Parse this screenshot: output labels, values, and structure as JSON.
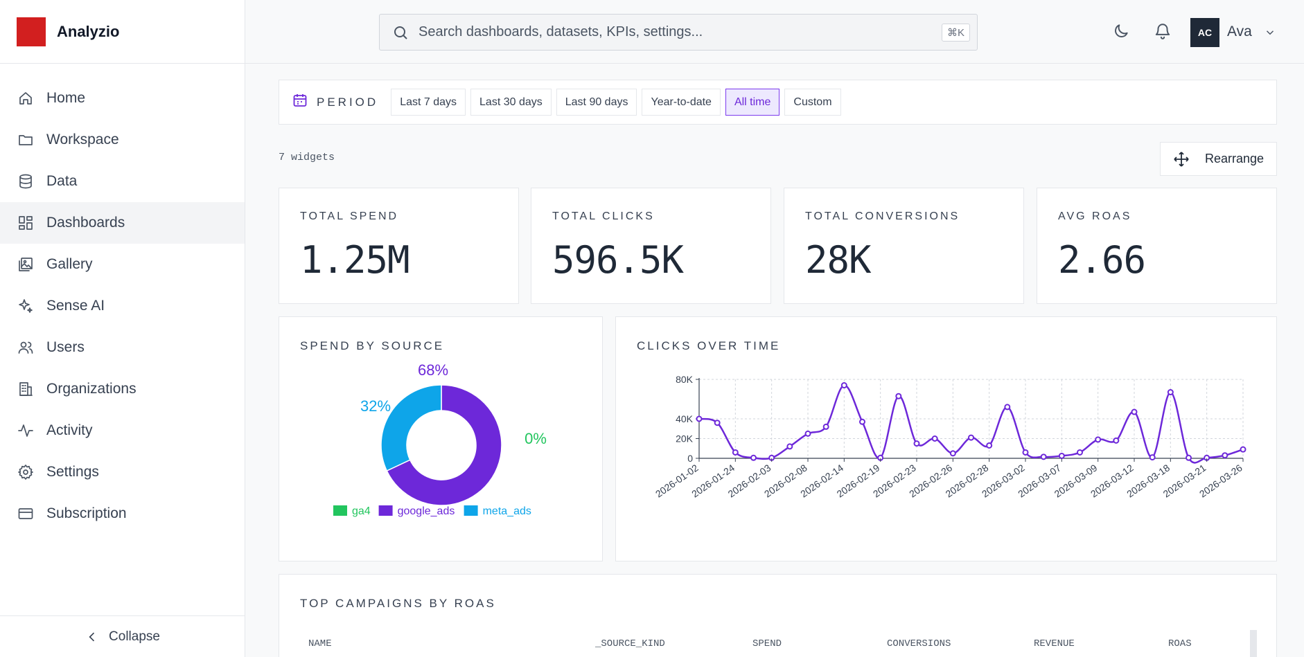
{
  "brand": {
    "name": "Analyzio",
    "logo_color": "#d21f1f"
  },
  "sidebar": {
    "items": [
      {
        "label": "Home",
        "icon": "home-icon",
        "active": false
      },
      {
        "label": "Workspace",
        "icon": "folder-icon",
        "active": false
      },
      {
        "label": "Data",
        "icon": "database-icon",
        "active": false
      },
      {
        "label": "Dashboards",
        "icon": "dashboard-grid-icon",
        "active": true
      },
      {
        "label": "Gallery",
        "icon": "gallery-icon",
        "active": false
      },
      {
        "label": "Sense AI",
        "icon": "sparkles-icon",
        "active": false
      },
      {
        "label": "Users",
        "icon": "users-icon",
        "active": false
      },
      {
        "label": "Organizations",
        "icon": "building-icon",
        "active": false
      },
      {
        "label": "Activity",
        "icon": "activity-icon",
        "active": false
      },
      {
        "label": "Settings",
        "icon": "gear-icon",
        "active": false
      },
      {
        "label": "Subscription",
        "icon": "credit-card-icon",
        "active": false
      }
    ],
    "collapse_label": "Collapse"
  },
  "header": {
    "search_placeholder": "Search dashboards, datasets, KPIs, settings...",
    "shortcut": "⌘K",
    "user_initials": "AC",
    "user_name": "Ava"
  },
  "period": {
    "label": "PERIOD",
    "options": [
      "Last 7 days",
      "Last 30 days",
      "Last 90 days",
      "Year-to-date",
      "All time",
      "Custom"
    ],
    "selected": "All time"
  },
  "toolbar": {
    "widgets_count": "7 widgets",
    "rearrange_label": "Rearrange"
  },
  "kpis": [
    {
      "label": "TOTAL SPEND",
      "value": "1.25M"
    },
    {
      "label": "TOTAL CLICKS",
      "value": "596.5K"
    },
    {
      "label": "TOTAL CONVERSIONS",
      "value": "28K"
    },
    {
      "label": "AVG ROAS",
      "value": "2.66"
    }
  ],
  "spend_by_source": {
    "title": "SPEND BY SOURCE"
  },
  "clicks_over_time": {
    "title": "CLICKS OVER TIME"
  },
  "table": {
    "title": "TOP CAMPAIGNS BY ROAS",
    "columns": [
      "NAME",
      "_SOURCE_KIND",
      "SPEND",
      "CONVERSIONS",
      "REVENUE",
      "ROAS"
    ]
  },
  "chart_data": [
    {
      "type": "pie",
      "title": "SPEND BY SOURCE",
      "slices": [
        {
          "name": "ga4",
          "value": 0,
          "label": "0%",
          "color": "#22c55e"
        },
        {
          "name": "google_ads",
          "value": 68,
          "label": "68%",
          "color": "#6d28d9"
        },
        {
          "name": "meta_ads",
          "value": 32,
          "label": "32%",
          "color": "#0ea5e9"
        }
      ],
      "legend": "bottom"
    },
    {
      "type": "line",
      "title": "CLICKS OVER TIME",
      "color": "#6d28d9",
      "x_ticks": [
        "2026-01-02",
        "2026-01-24",
        "2026-02-03",
        "2026-02-08",
        "2026-02-14",
        "2026-02-19",
        "2026-02-23",
        "2026-02-26",
        "2026-02-28",
        "2026-03-02",
        "2026-03-07",
        "2026-03-09",
        "2026-03-12",
        "2026-03-18",
        "2026-03-21",
        "2026-03-26"
      ],
      "y_ticks": [
        "0",
        "20K",
        "40K",
        "80K"
      ],
      "ylim": [
        0,
        80000
      ],
      "grid": true,
      "values": [
        40000,
        36000,
        6000,
        500,
        500,
        12000,
        25000,
        32000,
        74000,
        37000,
        500,
        63000,
        15000,
        20000,
        5000,
        21000,
        13000,
        52000,
        6000,
        1500,
        2500,
        6000,
        19000,
        18000,
        47000,
        1000,
        67000,
        500,
        500,
        3000,
        9000
      ]
    }
  ]
}
